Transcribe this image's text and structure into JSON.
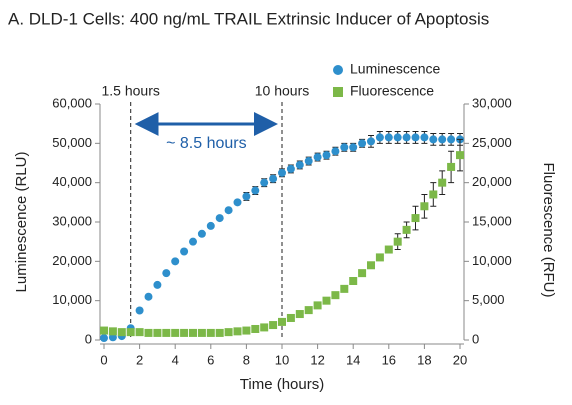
{
  "chart_data": {
    "type": "scatter",
    "title": "A. DLD-1 Cells: 400 ng/mL TRAIL Extrinsic Inducer of Apoptosis",
    "x_label": "Time (hours)",
    "y_label": "Luminescence (RLU)",
    "y2_label": "Fluorescence (RFU)",
    "x": [
      0,
      0.5,
      1,
      1.5,
      2,
      2.5,
      3,
      3.5,
      4,
      4.5,
      5,
      5.5,
      6,
      6.5,
      7,
      7.5,
      8,
      8.5,
      9,
      9.5,
      10,
      10.5,
      11,
      11.5,
      12,
      12.5,
      13,
      13.5,
      14,
      14.5,
      15,
      15.5,
      16,
      16.5,
      17,
      17.5,
      18,
      18.5,
      19,
      19.5,
      20
    ],
    "series": [
      {
        "name": "Luminescence",
        "color": "#2e8fcc",
        "marker": "circle",
        "axis": "y",
        "values": [
          500,
          700,
          1000,
          3000,
          7500,
          11000,
          14000,
          17000,
          20000,
          22500,
          25000,
          27000,
          29000,
          31000,
          33000,
          35000,
          36500,
          38000,
          40000,
          41000,
          42500,
          43500,
          44500,
          45500,
          46500,
          47000,
          48000,
          49000,
          49000,
          50000,
          50500,
          51500,
          51500,
          51500,
          51500,
          51500,
          51500,
          51000,
          51000,
          51000,
          51000
        ],
        "errors": [
          null,
          null,
          null,
          null,
          null,
          null,
          null,
          null,
          null,
          null,
          null,
          null,
          null,
          null,
          null,
          null,
          1000,
          1000,
          1000,
          1000,
          1000,
          1000,
          1000,
          1000,
          1000,
          1000,
          1000,
          1000,
          1000,
          1000,
          1500,
          1500,
          1500,
          1500,
          1500,
          1500,
          1500,
          1500,
          1500,
          1500,
          1500
        ]
      },
      {
        "name": "Fluorescence",
        "color": "#7cb848",
        "marker": "square",
        "axis": "y2",
        "values": [
          1200,
          1100,
          1000,
          1000,
          1000,
          900,
          900,
          900,
          900,
          900,
          900,
          900,
          900,
          900,
          1000,
          1100,
          1200,
          1400,
          1600,
          1900,
          2300,
          2800,
          3300,
          3800,
          4400,
          5000,
          5700,
          6500,
          7500,
          8500,
          9500,
          10500,
          11500,
          12500,
          14000,
          15500,
          17000,
          18500,
          20000,
          22000,
          23500
        ],
        "errors": [
          null,
          null,
          null,
          null,
          null,
          null,
          null,
          null,
          null,
          null,
          null,
          null,
          null,
          null,
          null,
          null,
          null,
          null,
          null,
          null,
          null,
          null,
          null,
          null,
          null,
          null,
          null,
          null,
          null,
          null,
          null,
          null,
          null,
          1000,
          1000,
          1500,
          1500,
          1500,
          1500,
          2000,
          2000
        ]
      }
    ],
    "xlim": [
      0,
      20
    ],
    "xticks": [
      0,
      2,
      4,
      6,
      8,
      10,
      12,
      14,
      16,
      18,
      20
    ],
    "ylim": [
      0,
      60000
    ],
    "yticks": [
      0,
      {
        "value": 10000,
        "label": "10,000"
      },
      {
        "value": 20000,
        "label": "20,000"
      },
      {
        "value": 30000,
        "label": "30,000"
      },
      {
        "value": 40000,
        "label": "40,000"
      },
      {
        "value": 50000,
        "label": "50,000"
      },
      {
        "value": 60000,
        "label": "60,000"
      }
    ],
    "y2lim": [
      0,
      30000
    ],
    "y2ticks": [
      0,
      {
        "value": 5000,
        "label": "5,000"
      },
      {
        "value": 10000,
        "label": "10,000"
      },
      {
        "value": 15000,
        "label": "15,000"
      },
      {
        "value": 20000,
        "label": "20,000"
      },
      {
        "value": 25000,
        "label": "25,000"
      },
      {
        "value": 30000,
        "label": "30,000"
      }
    ],
    "vlines": [
      {
        "value": 1.5,
        "label": "1.5 hours"
      },
      {
        "value": 10,
        "label": "10 hours"
      }
    ],
    "span_label": "~ 8.5 hours",
    "legend": "top-right"
  }
}
